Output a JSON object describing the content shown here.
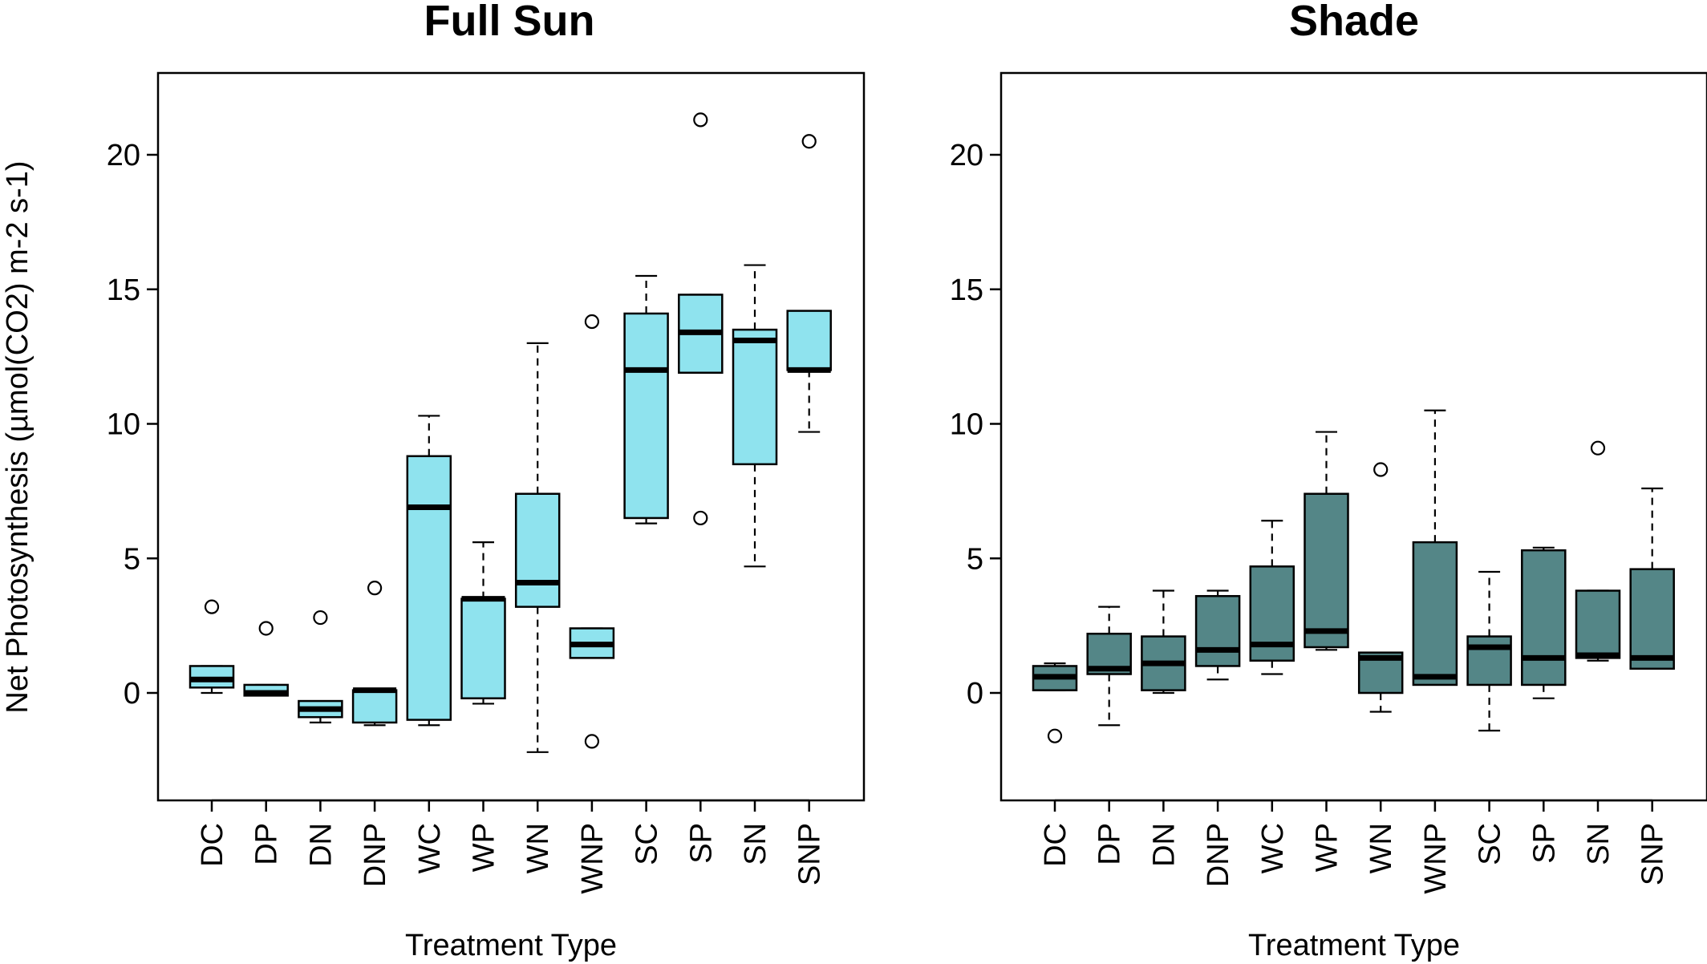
{
  "chart_data": [
    {
      "type": "boxplot",
      "title": "Full Sun",
      "xlabel": "Treatment Type",
      "ylabel": "Net Photosynthesis (µmol(CO2) m-2 s-1)",
      "ylim": [
        -4,
        23
      ],
      "yticks": [
        0,
        5,
        10,
        15,
        20
      ],
      "grid": false,
      "box_color": "#8fe3ee",
      "categories": [
        "DC",
        "DP",
        "DN",
        "DNP",
        "WC",
        "WP",
        "WN",
        "WNP",
        "SC",
        "SP",
        "SN",
        "SNP"
      ],
      "boxes": [
        {
          "category": "DC",
          "whisker_low": 0.0,
          "q1": 0.2,
          "median": 0.5,
          "q3": 1.0,
          "whisker_high": 1.0,
          "outliers": [
            3.2
          ]
        },
        {
          "category": "DP",
          "whisker_low": -0.1,
          "q1": -0.1,
          "median": 0.0,
          "q3": 0.3,
          "whisker_high": 0.3,
          "outliers": [
            2.4
          ]
        },
        {
          "category": "DN",
          "whisker_low": -1.1,
          "q1": -0.9,
          "median": -0.6,
          "q3": -0.3,
          "whisker_high": -0.3,
          "outliers": [
            2.8
          ]
        },
        {
          "category": "DNP",
          "whisker_low": -1.2,
          "q1": -1.1,
          "median": 0.1,
          "q3": 0.1,
          "whisker_high": 0.1,
          "outliers": [
            3.9
          ]
        },
        {
          "category": "WC",
          "whisker_low": -1.2,
          "q1": -1.0,
          "median": 6.9,
          "q3": 8.8,
          "whisker_high": 10.3,
          "outliers": []
        },
        {
          "category": "WP",
          "whisker_low": -0.4,
          "q1": -0.2,
          "median": 3.5,
          "q3": 3.5,
          "whisker_high": 5.6,
          "outliers": []
        },
        {
          "category": "WN",
          "whisker_low": -2.2,
          "q1": 3.2,
          "median": 4.1,
          "q3": 7.4,
          "whisker_high": 13.0,
          "outliers": []
        },
        {
          "category": "WNP",
          "whisker_low": 1.3,
          "q1": 1.3,
          "median": 1.8,
          "q3": 2.4,
          "whisker_high": 2.4,
          "outliers": [
            13.8,
            -1.8
          ]
        },
        {
          "category": "SC",
          "whisker_low": 6.3,
          "q1": 6.5,
          "median": 12.0,
          "q3": 14.1,
          "whisker_high": 15.5,
          "outliers": []
        },
        {
          "category": "SP",
          "whisker_low": 11.9,
          "q1": 11.9,
          "median": 13.4,
          "q3": 14.8,
          "whisker_high": 14.8,
          "outliers": [
            21.3,
            6.5
          ]
        },
        {
          "category": "SN",
          "whisker_low": 4.7,
          "q1": 8.5,
          "median": 13.1,
          "q3": 13.5,
          "whisker_high": 15.9,
          "outliers": []
        },
        {
          "category": "SNP",
          "whisker_low": 9.7,
          "q1": 12.0,
          "median": 12.0,
          "q3": 14.2,
          "whisker_high": 14.2,
          "outliers": [
            20.5
          ]
        }
      ]
    },
    {
      "type": "boxplot",
      "title": "Shade",
      "xlabel": "Treatment Type",
      "ylabel": "",
      "ylim": [
        -4,
        23
      ],
      "yticks": [
        0,
        5,
        10,
        15,
        20
      ],
      "grid": false,
      "box_color": "#548687",
      "categories": [
        "DC",
        "DP",
        "DN",
        "DNP",
        "WC",
        "WP",
        "WN",
        "WNP",
        "SC",
        "SP",
        "SN",
        "SNP"
      ],
      "boxes": [
        {
          "category": "DC",
          "whisker_low": 0.1,
          "q1": 0.1,
          "median": 0.6,
          "q3": 1.0,
          "whisker_high": 1.1,
          "outliers": [
            -1.6
          ]
        },
        {
          "category": "DP",
          "whisker_low": -1.2,
          "q1": 0.7,
          "median": 0.9,
          "q3": 2.2,
          "whisker_high": 3.2,
          "outliers": []
        },
        {
          "category": "DN",
          "whisker_low": 0.0,
          "q1": 0.1,
          "median": 1.1,
          "q3": 2.1,
          "whisker_high": 3.8,
          "outliers": []
        },
        {
          "category": "DNP",
          "whisker_low": 0.5,
          "q1": 1.0,
          "median": 1.6,
          "q3": 3.6,
          "whisker_high": 3.8,
          "outliers": []
        },
        {
          "category": "WC",
          "whisker_low": 0.7,
          "q1": 1.2,
          "median": 1.8,
          "q3": 4.7,
          "whisker_high": 6.4,
          "outliers": []
        },
        {
          "category": "WP",
          "whisker_low": 1.6,
          "q1": 1.7,
          "median": 2.3,
          "q3": 7.4,
          "whisker_high": 9.7,
          "outliers": []
        },
        {
          "category": "WN",
          "whisker_low": -0.7,
          "q1": 0.0,
          "median": 1.3,
          "q3": 1.5,
          "whisker_high": 1.5,
          "outliers": [
            8.3
          ]
        },
        {
          "category": "WNP",
          "whisker_low": 0.3,
          "q1": 0.3,
          "median": 0.6,
          "q3": 5.6,
          "whisker_high": 10.5,
          "outliers": []
        },
        {
          "category": "SC",
          "whisker_low": -1.4,
          "q1": 0.3,
          "median": 1.7,
          "q3": 2.1,
          "whisker_high": 4.5,
          "outliers": []
        },
        {
          "category": "SP",
          "whisker_low": -0.2,
          "q1": 0.3,
          "median": 1.3,
          "q3": 5.3,
          "whisker_high": 5.4,
          "outliers": []
        },
        {
          "category": "SN",
          "whisker_low": 1.2,
          "q1": 1.3,
          "median": 1.4,
          "q3": 3.8,
          "whisker_high": 3.8,
          "outliers": [
            9.1
          ]
        },
        {
          "category": "SNP",
          "whisker_low": 0.9,
          "q1": 0.9,
          "median": 1.3,
          "q3": 4.6,
          "whisker_high": 7.6,
          "outliers": []
        }
      ]
    }
  ]
}
